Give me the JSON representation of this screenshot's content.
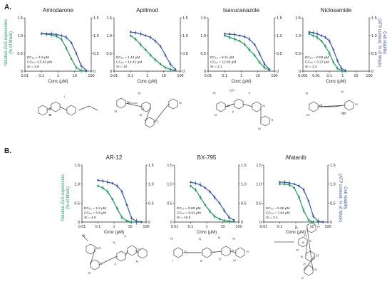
{
  "panels": [
    {
      "letter": "A."
    },
    {
      "letter": "B."
    }
  ],
  "colors": {
    "ec50": "#1a9b5a",
    "cc50": "#3a56b0",
    "axis": "#222222",
    "molecule": "#444444"
  },
  "shared": {
    "xlabel": "Conc (μM)",
    "ylabel_left": [
      "Relative ZsG expression",
      "(% of Mock)"
    ],
    "ylabel_right": [
      "Cell viability",
      "(ATP content, % of Mock)"
    ]
  },
  "chart_data": [
    {
      "type": "line",
      "title": "Amiodarone",
      "x_ticks": [
        "0.01",
        "0.1",
        "1",
        "10",
        "100"
      ],
      "xlim": [
        0.01,
        100
      ],
      "x_scale": "log",
      "y_ticks": [
        "0",
        "0.5",
        "1.0",
        "1.5"
      ],
      "ylim": [
        0,
        1.5
      ],
      "stats": [
        "EC₅₀ = 4.9 μM",
        "CC₅₀ =13.63 μM",
        "SI = 2.8"
      ],
      "series": [
        {
          "color": "ec50",
          "x": [
            0.1,
            0.2,
            0.4,
            0.8,
            1.6,
            3.1,
            6.3,
            12.5,
            25,
            50
          ],
          "y": [
            1.05,
            1.04,
            1.02,
            0.98,
            0.9,
            0.65,
            0.35,
            0.1,
            0.02,
            0.0
          ]
        },
        {
          "color": "cc50",
          "x": [
            0.1,
            0.2,
            0.4,
            0.8,
            1.6,
            3.1,
            6.3,
            12.5,
            25,
            50
          ],
          "y": [
            1.06,
            1.05,
            1.05,
            1.03,
            1.0,
            0.95,
            0.8,
            0.5,
            0.15,
            0.02
          ]
        }
      ]
    },
    {
      "type": "line",
      "title": "Apilimod",
      "x_ticks": [
        "0.01",
        "0.1",
        "1",
        "10",
        "100"
      ],
      "xlim": [
        0.01,
        100
      ],
      "x_scale": "log",
      "y_ticks": [
        "0",
        "0.5",
        "1.0",
        "1.5"
      ],
      "ylim": [
        0,
        1.5
      ],
      "stats": [
        "EC₅₀ = 1.44 μM",
        "CC₅₀ = 14.41 μM",
        "SI = 10"
      ],
      "series": [
        {
          "color": "ec50",
          "x": [
            0.1,
            0.2,
            0.4,
            0.8,
            1.6,
            3.1,
            6.3,
            12.5,
            25,
            50
          ],
          "y": [
            1.0,
            0.9,
            0.75,
            0.6,
            0.45,
            0.32,
            0.2,
            0.1,
            0.05,
            0.02
          ]
        },
        {
          "color": "cc50",
          "x": [
            0.1,
            0.2,
            0.4,
            0.8,
            1.6,
            3.1,
            6.3,
            12.5,
            25,
            50
          ],
          "y": [
            1.1,
            1.08,
            1.05,
            1.0,
            0.95,
            0.85,
            0.7,
            0.45,
            0.2,
            0.05
          ]
        }
      ]
    },
    {
      "type": "line",
      "title": "Isavucanazole",
      "x_ticks": [
        "0.01",
        "0.1",
        "1",
        "10",
        "100"
      ],
      "xlim": [
        0.01,
        100
      ],
      "x_scale": "log",
      "y_ticks": [
        "0",
        "0.5",
        "1.0",
        "1.5"
      ],
      "ylim": [
        0,
        1.5
      ],
      "stats": [
        "EC₅₀ = 6.11 μM",
        "CC₅₀ = 12.69 μM",
        "SI = 2.1"
      ],
      "series": [
        {
          "color": "ec50",
          "x": [
            0.1,
            0.2,
            0.4,
            0.8,
            1.6,
            3.1,
            6.3,
            12.5,
            25,
            50
          ],
          "y": [
            1.0,
            0.95,
            0.9,
            0.85,
            0.75,
            0.6,
            0.45,
            0.25,
            0.1,
            0.03
          ]
        },
        {
          "color": "cc50",
          "x": [
            0.1,
            0.2,
            0.4,
            0.8,
            1.6,
            3.1,
            6.3,
            12.5,
            25,
            50
          ],
          "y": [
            1.05,
            1.04,
            1.03,
            1.0,
            0.97,
            0.9,
            0.75,
            0.5,
            0.2,
            0.05
          ]
        }
      ]
    },
    {
      "type": "line",
      "title": "Niclosamide",
      "x_ticks": [
        "0.001",
        "0.01",
        "0.1",
        "1",
        "10",
        "100"
      ],
      "xlim": [
        0.001,
        100
      ],
      "x_scale": "log",
      "y_ticks": [
        "0",
        "0.5",
        "1.0",
        "1.5"
      ],
      "ylim": [
        0,
        1.5
      ],
      "stats": [
        "EC₅₀ = 0.09 μM",
        "CC₅₀ = 0.27 μM",
        "SI = 3.2"
      ],
      "series": [
        {
          "color": "ec50",
          "x": [
            0.003,
            0.006,
            0.012,
            0.025,
            0.05,
            0.1,
            0.2,
            0.4,
            0.8,
            1.6
          ],
          "y": [
            1.05,
            1.0,
            0.95,
            0.85,
            0.7,
            0.5,
            0.25,
            0.08,
            0.02,
            0.0
          ]
        },
        {
          "color": "cc50",
          "x": [
            0.003,
            0.006,
            0.012,
            0.025,
            0.05,
            0.1,
            0.2,
            0.4,
            0.8,
            1.6
          ],
          "y": [
            1.1,
            1.08,
            1.05,
            1.0,
            0.95,
            0.85,
            0.6,
            0.3,
            0.08,
            0.02
          ]
        }
      ]
    },
    {
      "type": "line",
      "title": "AR-12",
      "x_ticks": [
        "0.01",
        "0.1",
        "1",
        "10",
        "100"
      ],
      "xlim": [
        0.01,
        100
      ],
      "x_scale": "log",
      "y_ticks": [
        "0",
        "0.5",
        "1.0",
        "1.5"
      ],
      "ylim": [
        0,
        1.5
      ],
      "stats": [
        "EC₅₀ = 1.2 μM",
        "CC₅₀ = 5.5 μM",
        "SI = 4.5"
      ],
      "series": [
        {
          "color": "ec50",
          "x": [
            0.1,
            0.2,
            0.4,
            0.8,
            1.6,
            3.1,
            6.3,
            12.5,
            25,
            50
          ],
          "y": [
            0.95,
            0.9,
            0.8,
            0.6,
            0.35,
            0.12,
            0.03,
            0.0,
            0.0,
            0.0
          ]
        },
        {
          "color": "cc50",
          "x": [
            0.1,
            0.2,
            0.4,
            0.8,
            1.6,
            3.1,
            6.3,
            12.5,
            25,
            50
          ],
          "y": [
            1.1,
            1.08,
            1.05,
            1.02,
            0.95,
            0.8,
            0.45,
            0.1,
            0.02,
            0.0
          ]
        }
      ]
    },
    {
      "type": "line",
      "title": "BX-795",
      "x_ticks": [
        "0.01",
        "0.1",
        "1",
        "10",
        "100"
      ],
      "xlim": [
        0.01,
        100
      ],
      "x_scale": "log",
      "y_ticks": [
        "0",
        "0.5",
        "1.0",
        "1.5"
      ],
      "ylim": [
        0,
        1.5
      ],
      "stats": [
        "EC₅₀ = 0.60 μM",
        "CC₅₀ = 9.91 μM",
        "SI = 16.5"
      ],
      "series": [
        {
          "color": "ec50",
          "x": [
            0.1,
            0.2,
            0.4,
            0.8,
            1.6,
            3.1,
            6.3,
            12.5,
            25,
            50
          ],
          "y": [
            0.95,
            0.85,
            0.65,
            0.45,
            0.28,
            0.15,
            0.08,
            0.04,
            0.02,
            0.01
          ]
        },
        {
          "color": "cc50",
          "x": [
            0.1,
            0.2,
            0.4,
            0.8,
            1.6,
            3.1,
            6.3,
            12.5,
            25,
            50
          ],
          "y": [
            1.05,
            1.02,
            0.98,
            0.9,
            0.8,
            0.65,
            0.5,
            0.3,
            0.12,
            0.05
          ]
        }
      ]
    },
    {
      "type": "line",
      "title": "Afatanib",
      "x_ticks": [
        "0.01",
        "0.1",
        "1",
        "10",
        "100"
      ],
      "xlim": [
        0.01,
        100
      ],
      "x_scale": "log",
      "y_ticks": [
        "0",
        "0.5",
        "1.0",
        "1.5"
      ],
      "ylim": [
        0,
        1.5
      ],
      "stats": [
        "EC₅₀ = 2.26 μM",
        "CC₅₀ = 7.64 μM",
        "SI = 3.4"
      ],
      "series": [
        {
          "color": "ec50",
          "x": [
            0.1,
            0.2,
            0.4,
            0.8,
            1.6,
            3.1,
            6.3,
            12.5,
            25,
            50
          ],
          "y": [
            1.0,
            1.0,
            0.98,
            0.9,
            0.65,
            0.3,
            0.05,
            0.0,
            0.0,
            0.0
          ]
        },
        {
          "color": "cc50",
          "x": [
            0.1,
            0.2,
            0.4,
            0.8,
            1.6,
            3.1,
            6.3,
            12.5,
            25,
            50
          ],
          "y": [
            1.05,
            1.05,
            1.03,
            1.0,
            0.95,
            0.85,
            0.55,
            0.15,
            0.02,
            0.0
          ]
        }
      ]
    }
  ],
  "molecules": [
    {
      "atoms": [
        "O",
        "O",
        "I",
        "I",
        "N"
      ]
    },
    {
      "atoms": [
        "N",
        "O",
        "N",
        "N",
        "N",
        "N",
        "O"
      ]
    },
    {
      "atoms": [
        "N",
        "F",
        "F",
        "S",
        "N",
        "OH",
        "N",
        "N",
        "N"
      ]
    },
    {
      "atoms": [
        "Cl",
        "O",
        "N",
        "H",
        "Cl",
        "N",
        "O",
        "OH"
      ]
    },
    {
      "atoms": [
        "H₂N",
        "O",
        "N",
        "H",
        "N",
        "N",
        "F",
        "F",
        "F"
      ]
    },
    {
      "atoms": [
        "O",
        "S",
        "N",
        "H",
        "I",
        "N",
        "N",
        "N",
        "N",
        "H",
        "O",
        "N"
      ]
    },
    {
      "atoms": [
        "N",
        "O",
        "N",
        "H",
        "O",
        "N",
        "N",
        "N",
        "H",
        "Cl",
        "F"
      ]
    }
  ]
}
